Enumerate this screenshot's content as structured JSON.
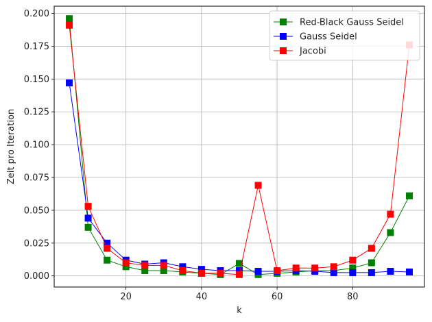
{
  "chart_data": {
    "type": "line",
    "title": "",
    "xlabel": "k",
    "ylabel": "Zeit pro Iteration",
    "xlim": [
      1,
      99
    ],
    "ylim": [
      -0.0085,
      0.2055
    ],
    "xticks": [
      20,
      40,
      60,
      80
    ],
    "xtick_labels": [
      "20",
      "40",
      "60",
      "80"
    ],
    "yticks": [
      0.0,
      0.025,
      0.05,
      0.075,
      0.1,
      0.125,
      0.15,
      0.175,
      0.2
    ],
    "ytick_labels": [
      "0.000",
      "0.025",
      "0.050",
      "0.075",
      "0.100",
      "0.125",
      "0.150",
      "0.175",
      "0.200"
    ],
    "grid": true,
    "legend_position": "top-right",
    "x": [
      5,
      10,
      15,
      20,
      25,
      30,
      35,
      40,
      45,
      50,
      55,
      60,
      65,
      70,
      75,
      80,
      85,
      90,
      95
    ],
    "series": [
      {
        "name": "Red-Black Gauss Seidel",
        "color": "#008000",
        "marker": "square",
        "values": [
          0.196,
          0.037,
          0.012,
          0.007,
          0.004,
          0.004,
          0.003,
          0.002,
          0.001,
          0.0095,
          0.001,
          0.002,
          0.003,
          0.004,
          0.004,
          0.006,
          0.01,
          0.033,
          0.061
        ]
      },
      {
        "name": "Gauss Seidel",
        "color": "#0000ff",
        "marker": "square",
        "values": [
          0.147,
          0.044,
          0.025,
          0.012,
          0.009,
          0.01,
          0.007,
          0.005,
          0.004,
          0.004,
          0.0035,
          0.0035,
          0.004,
          0.0035,
          0.0025,
          0.0025,
          0.0025,
          0.0035,
          0.003
        ]
      },
      {
        "name": "Jacobi",
        "color": "#ff0000",
        "marker": "square",
        "values": [
          0.191,
          0.053,
          0.021,
          0.01,
          0.008,
          0.008,
          0.004,
          0.002,
          0.002,
          0.001,
          0.069,
          0.004,
          0.006,
          0.006,
          0.007,
          0.012,
          0.021,
          0.047,
          0.176
        ]
      }
    ]
  }
}
